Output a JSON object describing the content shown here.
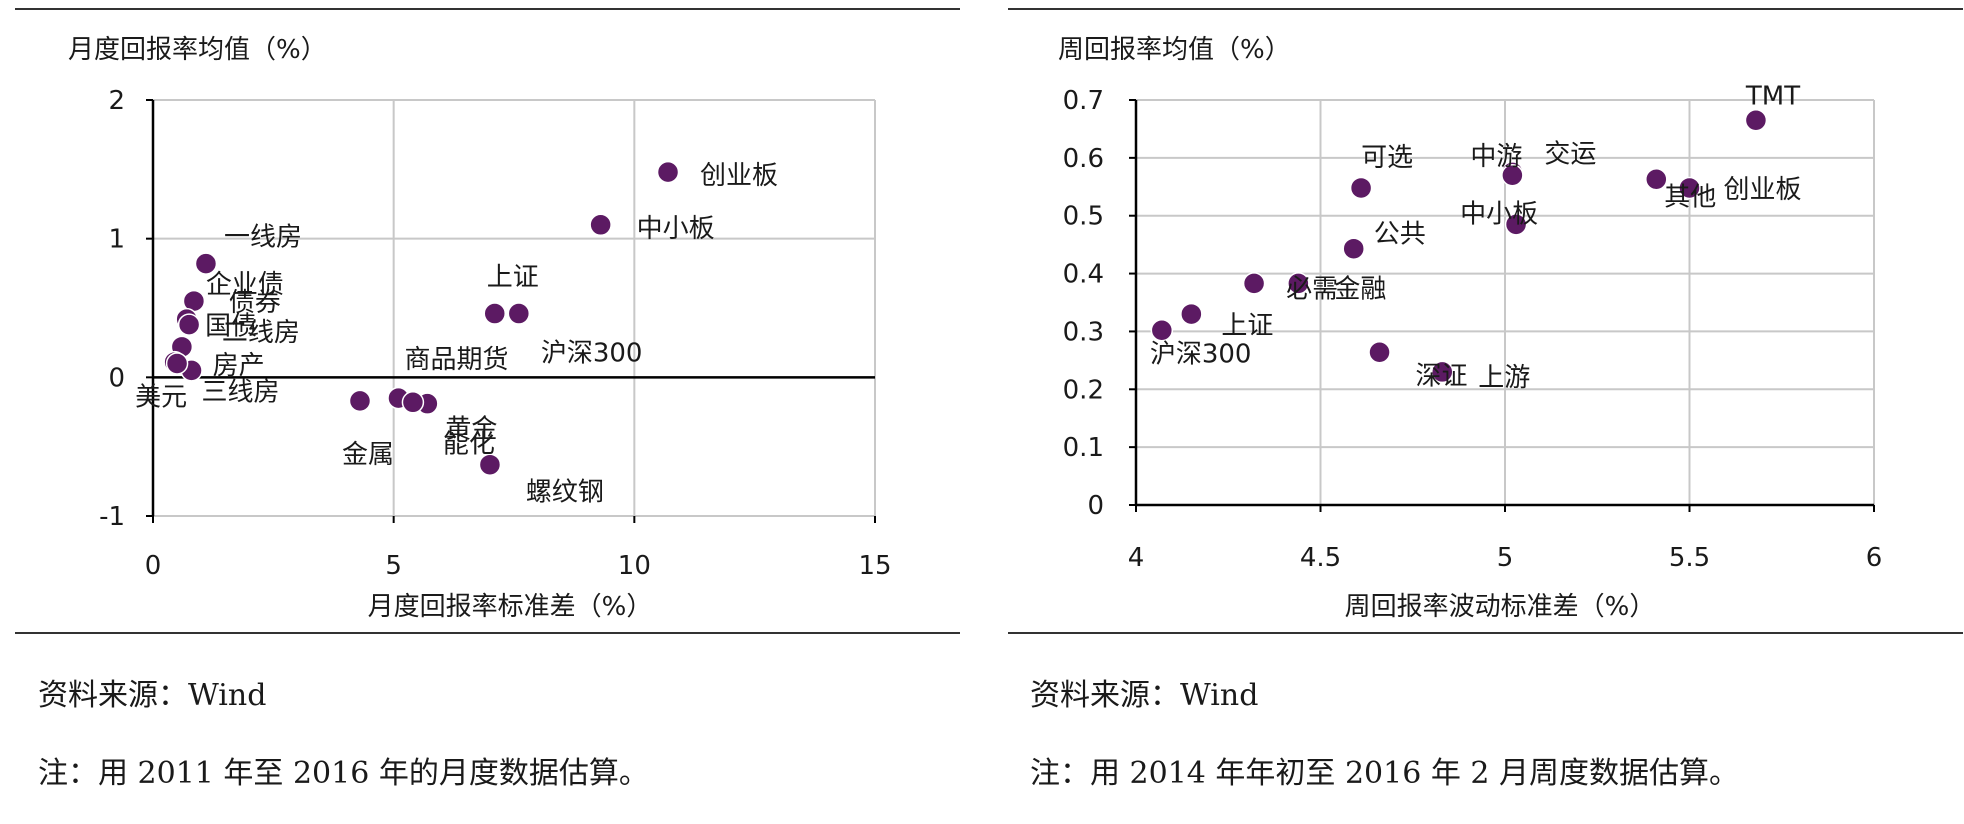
{
  "notes": {
    "left_source": "资料来源：Wind",
    "left_note": "注：用 2011 年至 2016 年的月度数据估算。",
    "right_source": "资料来源：Wind",
    "right_note": "注：用 2014 年年初至 2016 年 2 月周度数据估算。"
  },
  "colors": {
    "marker": "#5c1a63",
    "grid": "#c8c8c8",
    "axis": "#000000"
  },
  "chart_data": [
    {
      "type": "scatter",
      "title": "",
      "xlabel": "月度回报率标准差（%）",
      "ylabel": "月度回报率均值（%）",
      "xlim": [
        0,
        15
      ],
      "ylim": [
        -1,
        2
      ],
      "xticks": [
        "0",
        "5",
        "10",
        "15"
      ],
      "yticks": [
        "-1",
        "0",
        "1",
        "2"
      ],
      "grid": true,
      "points": [
        {
          "label": "创业板",
          "x": 10.7,
          "y": 1.48
        },
        {
          "label": "中小板",
          "x": 9.3,
          "y": 1.1
        },
        {
          "label": "上证",
          "x": 7.1,
          "y": 0.46
        },
        {
          "label": "沪深300",
          "x": 7.6,
          "y": 0.46
        },
        {
          "label": "一线房",
          "x": 1.1,
          "y": 0.82
        },
        {
          "label": "企业债",
          "x": 0.85,
          "y": 0.55
        },
        {
          "label": "债券",
          "x": 0.7,
          "y": 0.42
        },
        {
          "label": "国债",
          "x": 0.75,
          "y": 0.38
        },
        {
          "label": "二线房",
          "x": 0.6,
          "y": 0.22
        },
        {
          "label": "房产",
          "x": 0.45,
          "y": 0.11
        },
        {
          "label": "三线房",
          "x": 0.8,
          "y": 0.05
        },
        {
          "label": "美元",
          "x": 0.5,
          "y": 0.1
        },
        {
          "label": "商品期货",
          "x": 5.1,
          "y": -0.15
        },
        {
          "label": "黄金",
          "x": 5.7,
          "y": -0.19
        },
        {
          "label": "金属",
          "x": 4.3,
          "y": -0.17
        },
        {
          "label": "能化",
          "x": 5.4,
          "y": -0.18
        },
        {
          "label": "螺纹钢",
          "x": 7.0,
          "y": -0.63
        }
      ]
    },
    {
      "type": "scatter",
      "title": "",
      "xlabel": "周回报率波动标准差（%）",
      "ylabel": "周回报率均值（%）",
      "xlim": [
        4,
        6
      ],
      "ylim": [
        0,
        0.7
      ],
      "xticks": [
        "4",
        "4.5",
        "5",
        "5.5",
        "6"
      ],
      "yticks": [
        "0",
        "0.1",
        "0.2",
        "0.3",
        "0.4",
        "0.5",
        "0.6",
        "0.7"
      ],
      "grid": true,
      "points": [
        {
          "label": "TMT",
          "x": 5.68,
          "y": 0.665
        },
        {
          "label": "其他",
          "x": 5.41,
          "y": 0.563
        },
        {
          "label": "创业板",
          "x": 5.5,
          "y": 0.548
        },
        {
          "label": "交运",
          "x": 5.02,
          "y": 0.575
        },
        {
          "label": "可选",
          "x": 4.61,
          "y": 0.548
        },
        {
          "label": "中小板",
          "x": 5.03,
          "y": 0.485
        },
        {
          "label": "公共",
          "x": 4.59,
          "y": 0.443
        },
        {
          "label": "中游",
          "x": 5.02,
          "y": 0.57
        },
        {
          "label": "必需",
          "x": 4.32,
          "y": 0.383
        },
        {
          "label": "金融",
          "x": 4.44,
          "y": 0.383
        },
        {
          "label": "上证",
          "x": 4.15,
          "y": 0.33
        },
        {
          "label": "沪深300",
          "x": 4.07,
          "y": 0.302
        },
        {
          "label": "深证",
          "x": 4.66,
          "y": 0.264
        },
        {
          "label": "上游",
          "x": 4.83,
          "y": 0.23
        }
      ]
    }
  ]
}
